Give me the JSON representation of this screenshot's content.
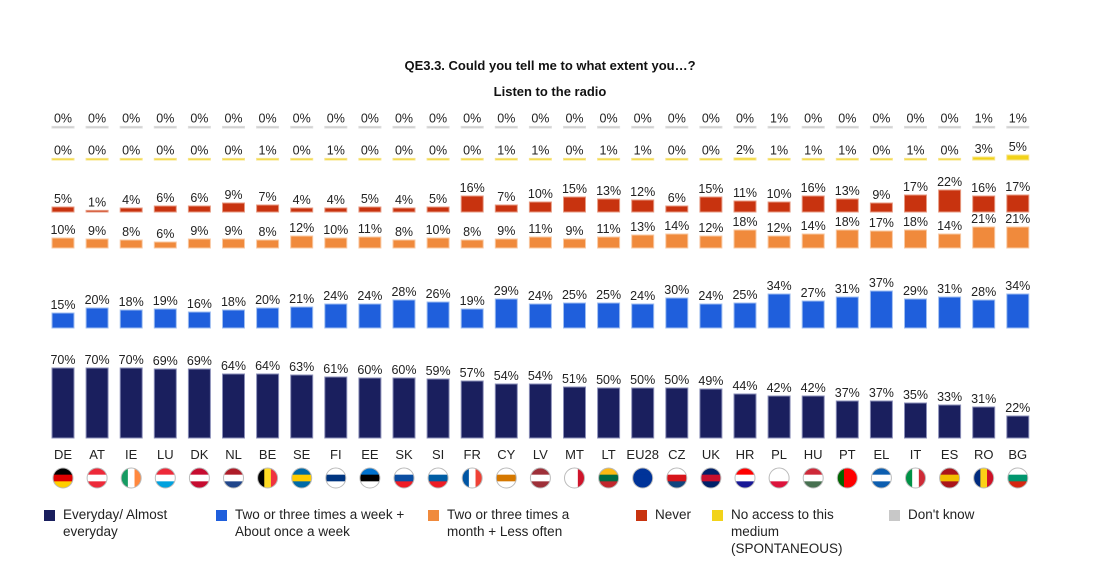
{
  "title": "QE3.3. Could you tell me to what extent you…?",
  "subtitle": "Listen to the radio",
  "chart_data": {
    "type": "bar",
    "stacking": "separate bands per category",
    "categories": [
      "DE",
      "AT",
      "IE",
      "LU",
      "DK",
      "NL",
      "BE",
      "SE",
      "FI",
      "EE",
      "SK",
      "SI",
      "FR",
      "CY",
      "LV",
      "MT",
      "LT",
      "EU28",
      "CZ",
      "UK",
      "HR",
      "PL",
      "HU",
      "PT",
      "EL",
      "IT",
      "ES",
      "RO",
      "BG"
    ],
    "series": [
      {
        "name": "Everyday/ Almost everyday",
        "color": "#1a1f5e",
        "values": [
          70,
          70,
          70,
          69,
          69,
          64,
          64,
          63,
          61,
          60,
          60,
          59,
          57,
          54,
          54,
          51,
          50,
          50,
          50,
          49,
          44,
          42,
          42,
          37,
          37,
          35,
          33,
          31,
          22
        ]
      },
      {
        "name": "Two or three times a week + About once a week",
        "color": "#1f5fdc",
        "values": [
          15,
          20,
          18,
          19,
          16,
          18,
          20,
          21,
          24,
          24,
          28,
          26,
          19,
          29,
          24,
          25,
          25,
          24,
          30,
          24,
          25,
          34,
          27,
          31,
          37,
          29,
          31,
          28,
          34
        ]
      },
      {
        "name": "Two or three times a month + Less often",
        "color": "#f08a3c",
        "values": [
          10,
          9,
          8,
          6,
          9,
          9,
          8,
          12,
          10,
          11,
          8,
          10,
          8,
          9,
          11,
          9,
          11,
          13,
          14,
          12,
          18,
          12,
          14,
          18,
          17,
          18,
          14,
          21,
          21
        ]
      },
      {
        "name": "Never",
        "color": "#c8330f",
        "values": [
          5,
          1,
          4,
          6,
          6,
          9,
          7,
          4,
          4,
          5,
          4,
          5,
          16,
          7,
          10,
          15,
          13,
          12,
          6,
          15,
          11,
          10,
          16,
          13,
          9,
          17,
          22,
          16,
          17
        ]
      },
      {
        "name": "No access to this medium (SPONTANEOUS)",
        "color": "#f2d31a",
        "values": [
          0,
          0,
          0,
          0,
          0,
          0,
          1,
          0,
          1,
          0,
          0,
          0,
          0,
          1,
          1,
          0,
          1,
          1,
          0,
          0,
          2,
          1,
          1,
          1,
          0,
          1,
          0,
          3,
          5
        ]
      },
      {
        "name": "Don't know",
        "color": "#c8c8c8",
        "values": [
          0,
          0,
          0,
          0,
          0,
          0,
          0,
          0,
          0,
          0,
          0,
          0,
          0,
          0,
          0,
          0,
          0,
          0,
          0,
          0,
          0,
          1,
          0,
          0,
          0,
          0,
          0,
          1,
          1
        ]
      }
    ],
    "ylim": [
      0,
      100
    ],
    "grid": false,
    "legend_position": "bottom"
  },
  "legend": [
    {
      "label": "Everyday/ Almost everyday",
      "icon": "navy-square"
    },
    {
      "label": "Two or three times a week + About once a week",
      "icon": "blue-square"
    },
    {
      "label": "Two or three times a month + Less often",
      "icon": "orange-square"
    },
    {
      "label": "Never",
      "icon": "red-square"
    },
    {
      "label": "No access to this medium (SPONTANEOUS)",
      "icon": "yellow-square"
    },
    {
      "label": "Don't know",
      "icon": "grey-square"
    }
  ],
  "flags": [
    "germany-flag-icon",
    "austria-flag-icon",
    "ireland-flag-icon",
    "luxembourg-flag-icon",
    "denmark-flag-icon",
    "netherlands-flag-icon",
    "belgium-flag-icon",
    "sweden-flag-icon",
    "finland-flag-icon",
    "estonia-flag-icon",
    "slovakia-flag-icon",
    "slovenia-flag-icon",
    "france-flag-icon",
    "cyprus-flag-icon",
    "latvia-flag-icon",
    "malta-flag-icon",
    "lithuania-flag-icon",
    "eu-flag-icon",
    "czechia-flag-icon",
    "uk-flag-icon",
    "croatia-flag-icon",
    "poland-flag-icon",
    "hungary-flag-icon",
    "portugal-flag-icon",
    "greece-flag-icon",
    "italy-flag-icon",
    "spain-flag-icon",
    "romania-flag-icon",
    "bulgaria-flag-icon"
  ]
}
